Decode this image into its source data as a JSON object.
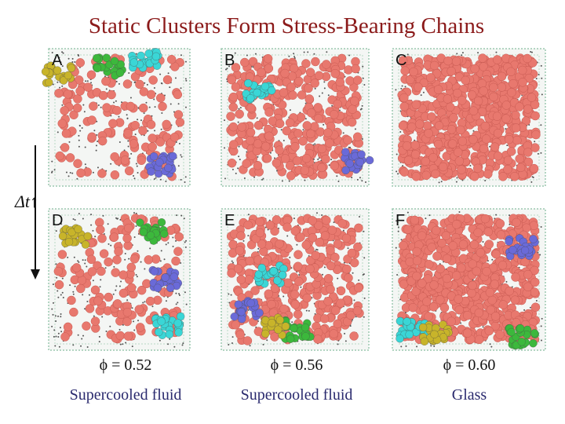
{
  "title": "Static Clusters Form Stress-Bearing Chains",
  "time_axis": "Δt↑",
  "panels": [
    {
      "label": "A"
    },
    {
      "label": "B"
    },
    {
      "label": "C"
    },
    {
      "label": "D"
    },
    {
      "label": "E"
    },
    {
      "label": "F"
    }
  ],
  "columns": [
    {
      "phi": "ϕ = 0.52",
      "state": "Supercooled fluid"
    },
    {
      "phi": "ϕ = 0.56",
      "state": "Supercooled fluid"
    },
    {
      "phi": "ϕ = 0.60",
      "state": "Glass"
    }
  ]
}
